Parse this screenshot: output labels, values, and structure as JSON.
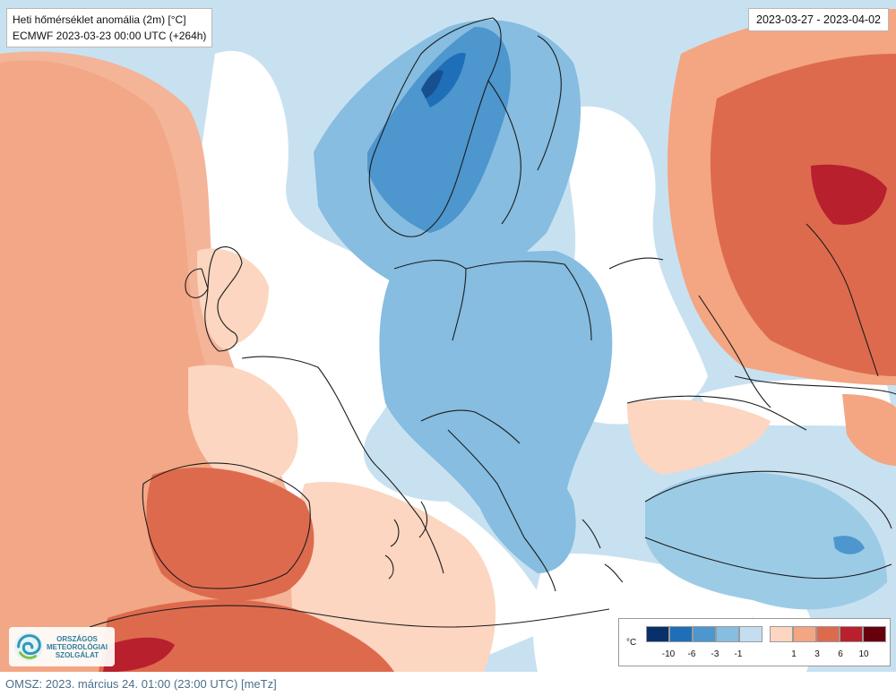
{
  "title": {
    "line1": "Heti hőmérséklet anomália (2m) [°C]",
    "line2": "ECMWF 2023-03-23 00:00 UTC (+264h)"
  },
  "date_range": "2023-03-27 - 2023-04-02",
  "logo": {
    "line1": "ORSZÁGOS",
    "line2": "METEOROLÓGIAI",
    "line3": "SZOLGÁLAT"
  },
  "legend": {
    "unit": "°C",
    "cold_colors": [
      "#08306b",
      "#1f6fb8",
      "#4d96ce",
      "#86bde0",
      "#c4def0"
    ],
    "warm_colors": [
      "#fcd6c0",
      "#f4a582",
      "#de6a4e",
      "#b8202d",
      "#67000d"
    ],
    "cold_ticks": [
      "-10",
      "-6",
      "-3",
      "-1"
    ],
    "warm_ticks": [
      "1",
      "3",
      "6",
      "10"
    ]
  },
  "footer": "OMSZ: 2023. március 24. 01:00 (23:00 UTC) [meTz]"
}
